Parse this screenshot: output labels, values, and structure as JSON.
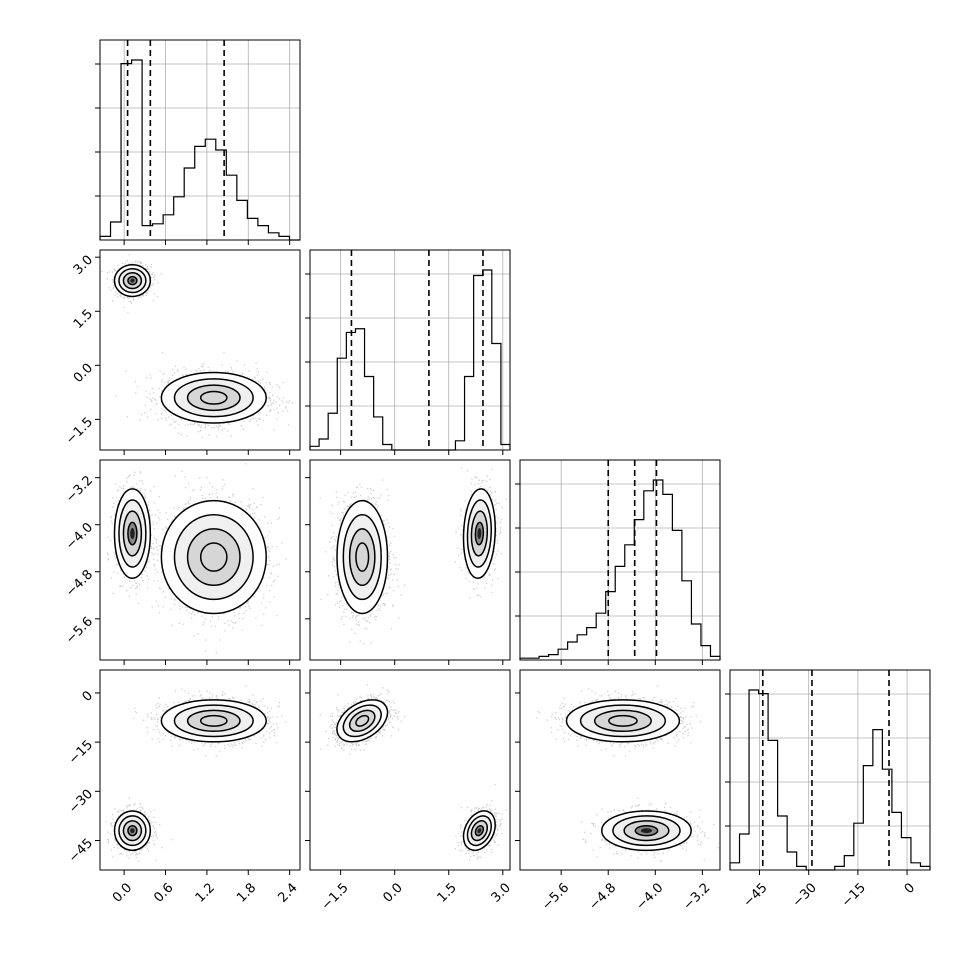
{
  "chart_data": {
    "type": "corner",
    "parameters": [
      {
        "ticks": [
          0.0,
          0.6,
          1.2,
          1.8,
          2.4
        ],
        "tick_labels": [
          "0.0",
          "0.6",
          "1.2",
          "1.8",
          "2.4"
        ],
        "range": [
          -0.35,
          2.55
        ],
        "quantiles": [
          0.05,
          0.38,
          1.45
        ],
        "hist": [
          2,
          10,
          98,
          100,
          8,
          9,
          14,
          24,
          40,
          52,
          56,
          50,
          36,
          22,
          12,
          8,
          4,
          2,
          0
        ]
      },
      {
        "ticks": [
          -1.5,
          0.0,
          1.5,
          3.0
        ],
        "tick_labels": [
          "−1.5",
          "0.0",
          "1.5",
          "3.0"
        ],
        "range": [
          -2.35,
          3.2
        ],
        "quantiles": [
          -1.2,
          0.95,
          2.45
        ],
        "hist": [
          2,
          6,
          20,
          50,
          64,
          66,
          40,
          18,
          3,
          0,
          0,
          0,
          0,
          0,
          0,
          0,
          5,
          40,
          95,
          98,
          58,
          3
        ]
      },
      {
        "ticks": [
          -5.6,
          -4.8,
          -4.0,
          -3.2
        ],
        "tick_labels": [
          "−5.6",
          "−4.8",
          "−4.0",
          "−3.2"
        ],
        "range": [
          -6.3,
          -2.9
        ],
        "quantiles": [
          -4.8,
          -4.35,
          -3.98
        ],
        "hist": [
          1,
          1,
          2,
          3,
          6,
          10,
          14,
          18,
          26,
          38,
          52,
          64,
          78,
          94,
          100,
          92,
          72,
          44,
          20,
          8,
          2
        ]
      },
      {
        "ticks": [
          -45,
          -30,
          -15,
          0
        ],
        "tick_labels": [
          "−45",
          "−30",
          "−15",
          "0"
        ],
        "range": [
          -54,
          7
        ],
        "quantiles": [
          -44,
          -29,
          -5.5
        ],
        "hist": [
          4,
          20,
          100,
          98,
          72,
          30,
          10,
          2,
          0,
          0,
          0,
          2,
          8,
          26,
          58,
          78,
          56,
          32,
          18,
          4,
          2
        ]
      }
    ],
    "pair_ticks_y": [
      {
        "ticks": [
          3.0,
          1.5,
          0.0,
          -1.5
        ],
        "tick_labels": [
          "3.0",
          "1.5",
          "0.0",
          "−1.5"
        ]
      },
      {
        "ticks": [
          -3.2,
          -4.0,
          -4.8,
          -5.6
        ],
        "tick_labels": [
          "−3.2",
          "−4.0",
          "−4.8",
          "−5.6"
        ]
      },
      {
        "ticks": [
          0,
          -15,
          -30,
          -45
        ],
        "tick_labels": [
          "0",
          "−15",
          "−30",
          "−45"
        ]
      }
    ],
    "modes": [
      {
        "weight": 0.34,
        "mean": [
          0.12,
          2.35,
          -4.15,
          -42.0
        ],
        "std": [
          0.13,
          0.22,
          0.38,
          3.0
        ]
      },
      {
        "weight": 0.66,
        "mean": [
          1.3,
          -0.9,
          -4.55,
          -8.5
        ],
        "std": [
          0.38,
          0.35,
          0.48,
          3.2
        ]
      }
    ],
    "pair_correlations": {
      "1": [
        [
          0.0,
          -0.2,
          0.35
        ],
        [
          0.0,
          0.3,
          0.1
        ],
        [
          0.0,
          0.0,
          0.0
        ],
        [
          0.0,
          0.4,
          0.0
        ]
      ],
      "0": [
        [
          0.0,
          0.0,
          0.0
        ],
        [
          0.0,
          -0.6,
          0.0
        ],
        [
          0.0,
          0.1,
          0.75
        ],
        [
          0.0,
          0.3,
          0.0
        ]
      ]
    },
    "grid": true,
    "legend": "none",
    "title": "",
    "xlabel": "",
    "ylabel": ""
  }
}
